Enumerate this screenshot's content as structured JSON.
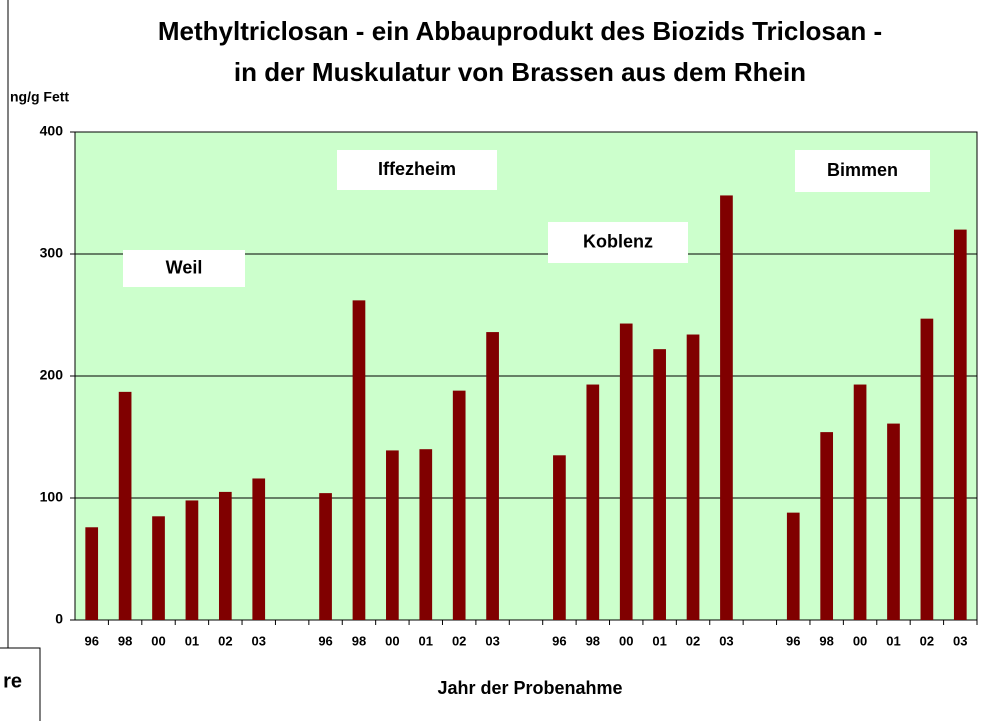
{
  "chart_data": {
    "type": "bar",
    "title": [
      "Methyltriclosan - ein Abbauprodukt des Biozids Triclosan -",
      "in der Muskulatur von Brassen aus dem Rhein"
    ],
    "y_label": "ng/g Fett",
    "x_label": "Jahr der Probenahme",
    "legend_text": "re",
    "annotations": [
      "Weil",
      "Iffezheim",
      "Koblenz",
      "Bimmen"
    ],
    "categories": [
      "96",
      "98",
      "00",
      "01",
      "02",
      "03",
      null,
      "96",
      "98",
      "00",
      "01",
      "02",
      "03",
      null,
      "96",
      "98",
      "00",
      "01",
      "02",
      "03",
      null,
      "96",
      "98",
      "00",
      "01",
      "02",
      "03"
    ],
    "values": [
      76,
      187,
      85,
      98,
      105,
      116,
      null,
      104,
      262,
      139,
      140,
      188,
      236,
      null,
      135,
      193,
      243,
      222,
      234,
      348,
      null,
      88,
      154,
      193,
      161,
      247,
      320
    ],
    "color": "#800000",
    "background": "#ccffcc",
    "ylim": [
      0,
      400
    ],
    "yticks": [
      0,
      100,
      200,
      300,
      400
    ],
    "grid": true
  }
}
